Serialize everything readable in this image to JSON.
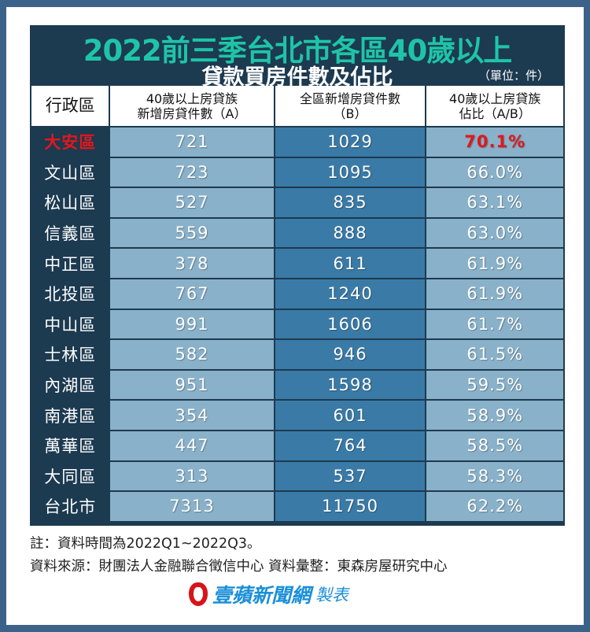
{
  "title": "2022前三季台北市各區40歲以上",
  "subtitle": "貸款買房件數及佔比",
  "unit": "（單位：件）",
  "chart_data": {
    "type": "table",
    "columns": [
      "行政區",
      "40歲以上房貸族\n新增房貸件數（A）",
      "全區新增房貸件數\n（B）",
      "40歲以上房貸族\n佔比（A/B）"
    ],
    "rows": [
      [
        "大安區",
        "721",
        "1029",
        "70.1%"
      ],
      [
        "文山區",
        "723",
        "1095",
        "66.0%"
      ],
      [
        "松山區",
        "527",
        "835",
        "63.1%"
      ],
      [
        "信義區",
        "559",
        "888",
        "63.0%"
      ],
      [
        "中正區",
        "378",
        "611",
        "61.9%"
      ],
      [
        "北投區",
        "767",
        "1240",
        "61.9%"
      ],
      [
        "中山區",
        "991",
        "1606",
        "61.7%"
      ],
      [
        "士林區",
        "582",
        "946",
        "61.5%"
      ],
      [
        "內湖區",
        "951",
        "1598",
        "59.5%"
      ],
      [
        "南港區",
        "354",
        "601",
        "58.9%"
      ],
      [
        "萬華區",
        "447",
        "764",
        "58.5%"
      ],
      [
        "大同區",
        "313",
        "537",
        "58.3%"
      ],
      [
        "台北市",
        "7313",
        "11750",
        "62.2%"
      ]
    ],
    "highlight_row": "大安區",
    "highlight_color": "#e3171c"
  },
  "notes": {
    "note": "註：資料時間為2022Q1~2022Q3。",
    "source": "資料來源：財團法人金融聯合徵信中心 資料彙整：東森房屋研究中心"
  },
  "logo": {
    "brand": "壹蘋新聞網",
    "suffix": "製表"
  }
}
